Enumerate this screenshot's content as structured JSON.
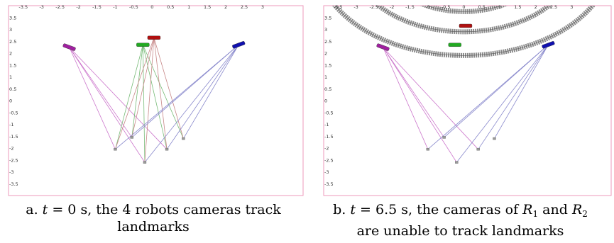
{
  "panels": [
    {
      "id": "a",
      "xticks": [
        "-3.5",
        "-3",
        "-2.5",
        "-2",
        "-1.5",
        "-1",
        "-0.5",
        "0",
        "0.5",
        "1",
        "1.5",
        "2",
        "2.5",
        "3"
      ],
      "yticks": [
        "3.5",
        "3",
        "2.5",
        "2",
        "1.5",
        "1",
        "0.5",
        "0",
        "-0.5",
        "-1",
        "-1.5",
        "-2",
        "-2.5",
        "-3",
        "-3.5"
      ],
      "robots": [
        {
          "color": "#a020a0",
          "x": -2.25,
          "y": 2.25,
          "angle": 20
        },
        {
          "color": "#22aa22",
          "x": -0.25,
          "y": 2.35,
          "angle": 0
        },
        {
          "color": "#b01010",
          "x": 0.05,
          "y": 2.65,
          "angle": 0
        },
        {
          "color": "#1010b0",
          "x": 2.35,
          "y": 2.35,
          "angle": -20
        }
      ],
      "landmarks": [
        {
          "x": -1.0,
          "y": -2.05
        },
        {
          "x": -0.55,
          "y": -1.55
        },
        {
          "x": -0.2,
          "y": -2.6
        },
        {
          "x": 0.4,
          "y": -2.05
        },
        {
          "x": 0.85,
          "y": -1.6
        }
      ],
      "sightlines": [
        {
          "from": 0,
          "to": [
            0,
            1,
            2,
            3
          ],
          "color": "#cc77cc"
        },
        {
          "from": 1,
          "to": [
            0,
            1,
            2,
            3,
            4
          ],
          "color": "#77bb77"
        },
        {
          "from": 2,
          "to": [
            0,
            1,
            2,
            3,
            4
          ],
          "color": "#c78888"
        },
        {
          "from": 3,
          "to": [
            0,
            1,
            2,
            3,
            4
          ],
          "color": "#8888cc"
        }
      ],
      "rings": [],
      "caption": {
        "prefix": "a. ",
        "var": "t",
        "line1_rest": " = 0 s, the 4 robots cameras track",
        "line2": "landmarks"
      }
    },
    {
      "id": "b",
      "xticks": [
        "-3.5",
        "-3",
        "-2.5",
        "-2",
        "-1.5",
        "-1",
        "-0.5",
        "0",
        "0.5",
        "1",
        "1.5",
        "2",
        "2.5",
        "3"
      ],
      "yticks": [
        "3.5",
        "3",
        "2.5",
        "2",
        "1.5",
        "1",
        "0.5",
        "0",
        "-0.5",
        "-1",
        "-1.5",
        "-2",
        "-2.5",
        "-3",
        "-3.5"
      ],
      "robots": [
        {
          "color": "#a020a0",
          "x": -2.25,
          "y": 2.25,
          "angle": 20
        },
        {
          "color": "#22aa22",
          "x": -0.25,
          "y": 2.35,
          "angle": 0
        },
        {
          "color": "#b01010",
          "x": 0.05,
          "y": 3.15,
          "angle": 0
        },
        {
          "color": "#1010b0",
          "x": 2.35,
          "y": 2.35,
          "angle": -20
        }
      ],
      "landmarks": [
        {
          "x": -1.0,
          "y": -2.05
        },
        {
          "x": -0.55,
          "y": -1.55
        },
        {
          "x": -0.2,
          "y": -2.6
        },
        {
          "x": 0.4,
          "y": -2.05
        },
        {
          "x": 0.85,
          "y": -1.6
        }
      ],
      "sightlines": [
        {
          "from": 0,
          "to": [
            0,
            1,
            2,
            3
          ],
          "color": "#cc77cc"
        },
        {
          "from": 3,
          "to": [
            0,
            1,
            2,
            3,
            4
          ],
          "color": "#8888cc"
        }
      ],
      "rings": [
        {
          "cy": 6.0,
          "r": 4.1,
          "color": "#8a8a8a"
        },
        {
          "cy": 6.0,
          "r": 3.1,
          "color": "#8a8a8a"
        },
        {
          "cy": 6.0,
          "r": 2.25,
          "color": "#8a8a8a"
        }
      ],
      "caption": {
        "prefix": "b. ",
        "var": "t",
        "line1_rest": " = 6.5 s, the cameras of ",
        "r1": "R",
        "r1_sub": "1",
        "and": " and ",
        "r2": "R",
        "r2_sub": "2",
        "line2": "are unable to track landmarks"
      }
    }
  ]
}
